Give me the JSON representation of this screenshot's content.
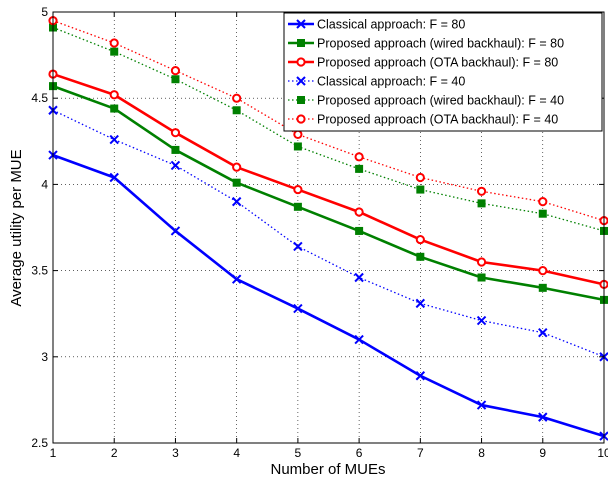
{
  "chart_data": {
    "type": "line",
    "xlabel": "Number of MUEs",
    "ylabel": "Average utility per MUE",
    "xlim": [
      1,
      10
    ],
    "ylim": [
      2.5,
      5
    ],
    "xticks": [
      1,
      2,
      3,
      4,
      5,
      6,
      7,
      8,
      9,
      10
    ],
    "yticks": [
      2.5,
      3,
      3.5,
      4,
      4.5,
      5
    ],
    "grid": true,
    "legend_position": "top-right",
    "x": [
      1,
      2,
      3,
      4,
      5,
      6,
      7,
      8,
      9,
      10
    ],
    "series": [
      {
        "name": "Classical approach: F = 80",
        "color": "#0000ff",
        "line": "solid",
        "marker": "x",
        "values": [
          4.17,
          4.04,
          3.73,
          3.45,
          3.28,
          3.1,
          2.89,
          2.72,
          2.65,
          2.54
        ]
      },
      {
        "name": "Proposed approach (wired backhaul): F = 80",
        "color": "#008000",
        "line": "solid",
        "marker": "square",
        "values": [
          4.57,
          4.44,
          4.2,
          4.01,
          3.87,
          3.73,
          3.58,
          3.46,
          3.4,
          3.33
        ]
      },
      {
        "name": "Proposed approach (OTA backhaul): F = 80",
        "color": "#ff0000",
        "line": "solid",
        "marker": "circle",
        "values": [
          4.64,
          4.52,
          4.3,
          4.1,
          3.97,
          3.84,
          3.68,
          3.55,
          3.5,
          3.42
        ]
      },
      {
        "name": "Classical approach: F = 40",
        "color": "#0000ff",
        "line": "dotted",
        "marker": "x",
        "values": [
          4.43,
          4.26,
          4.11,
          3.9,
          3.64,
          3.46,
          3.31,
          3.21,
          3.14,
          3.0
        ]
      },
      {
        "name": "Proposed approach (wired backhaul): F = 40",
        "color": "#008000",
        "line": "dotted",
        "marker": "square",
        "values": [
          4.91,
          4.77,
          4.61,
          4.43,
          4.22,
          4.09,
          3.97,
          3.89,
          3.83,
          3.73
        ]
      },
      {
        "name": "Proposed approach (OTA backhaul): F = 40",
        "color": "#ff0000",
        "line": "dotted",
        "marker": "circle",
        "values": [
          4.95,
          4.82,
          4.66,
          4.5,
          4.29,
          4.16,
          4.04,
          3.96,
          3.9,
          3.79
        ]
      }
    ]
  }
}
